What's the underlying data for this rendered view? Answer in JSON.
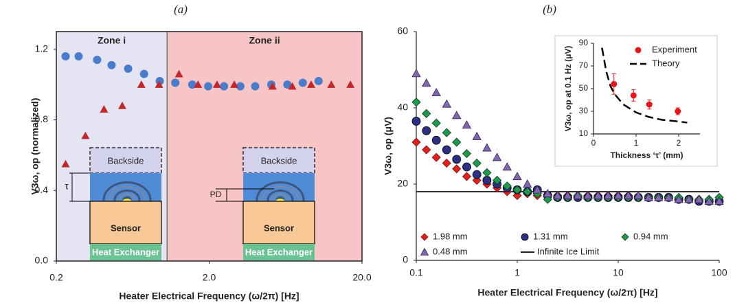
{
  "chart_data": [
    {
      "type": "scatter",
      "title": "(a)",
      "xlabel": "Heater Electrical Frequency (ω/2π) [Hz]",
      "ylabel": "V3ω, op (normalized)",
      "xscale": "log",
      "xlim": [
        0.2,
        20
      ],
      "ylim": [
        0,
        1.3
      ],
      "xticks": [
        0.2,
        {
          "value": 2,
          "label": "2.0"
        },
        {
          "value": 20,
          "label": "20.0"
        }
      ],
      "yticks": [
        {
          "value": 0,
          "label": "0.0"
        },
        0.4,
        0.8,
        1.2
      ],
      "frame": true,
      "zones": [
        {
          "label": "Zone i",
          "xlim": [
            0.2,
            1.06
          ],
          "color": "#e4e4f3"
        },
        {
          "label": "Zone ii",
          "xlim": [
            1.06,
            20
          ],
          "color": "#f7c5c5"
        }
      ],
      "schematics": [
        {
          "layers": [
            "Backside",
            "Sensor",
            "Heat Exchanger"
          ],
          "dimension": "τ"
        },
        {
          "layers": [
            "Backside",
            "Sensor",
            "Heat Exchanger"
          ],
          "dimension": "PD"
        }
      ],
      "series": [
        {
          "marker": "circle",
          "color": "#4a7ccc",
          "x": [
            0.23,
            0.28,
            0.37,
            0.46,
            0.59,
            0.75,
            0.95,
            1.2,
            1.55,
            1.97,
            2.5,
            3.2,
            4.0,
            5.1,
            6.5,
            8.2,
            10.4
          ],
          "values": [
            1.16,
            1.16,
            1.14,
            1.11,
            1.09,
            1.06,
            1.02,
            1.01,
            1.0,
            0.99,
            0.99,
            0.99,
            0.99,
            1.0,
            1.0,
            1.01,
            1.02
          ]
        },
        {
          "marker": "triangle",
          "color": "#c0282d",
          "x": [
            0.23,
            0.31,
            0.41,
            0.54,
            0.72,
            0.94,
            1.27,
            1.69,
            2.25,
            2.92,
            5.2,
            7.0,
            9.3,
            12.6,
            16.8
          ],
          "values": [
            0.55,
            0.71,
            0.86,
            0.88,
            1.0,
            1.0,
            1.06,
            1.0,
            1.0,
            1.0,
            0.99,
            0.99,
            1.0,
            1.0,
            1.0
          ]
        }
      ]
    },
    {
      "type": "scatter",
      "title": "(b)",
      "xlabel": "Heater Electrical Frequency (ω/2π) [Hz]",
      "ylabel": "V3ω, op (μV)",
      "xscale": "log",
      "xlim": [
        0.1,
        100
      ],
      "ylim": [
        0,
        60
      ],
      "xticks": [
        0.1,
        1,
        10,
        100
      ],
      "yticks": [
        0,
        20,
        40,
        60
      ],
      "frame": false,
      "legend": "lower left",
      "series": [
        {
          "name": "1.98 mm",
          "marker": "diamond",
          "color": "#e0201c",
          "stroke": "#7a1010",
          "x": [
            0.1,
            0.126,
            0.158,
            0.2,
            0.251,
            0.316,
            0.398,
            0.501,
            0.631,
            0.794,
            1,
            1.26,
            1.58,
            2,
            2.51,
            3.16,
            3.98,
            5.01,
            6.31,
            7.94,
            10,
            12.6,
            15.8,
            20,
            25.1,
            31.6,
            39.8,
            50.1,
            63.1,
            79.4,
            100
          ],
          "values": [
            31,
            29,
            27,
            25.5,
            24,
            22,
            21,
            20,
            19,
            18,
            17,
            17.5,
            17,
            17,
            17,
            17,
            17,
            17,
            17,
            17,
            17,
            17,
            16.5,
            16.5,
            16.5,
            16.5,
            16,
            16,
            16,
            16,
            15.5
          ]
        },
        {
          "name": "1.31 mm",
          "marker": "circle",
          "color": "#2b2f86",
          "stroke": "#000000",
          "x": [
            0.1,
            0.126,
            0.158,
            0.2,
            0.251,
            0.316,
            0.398,
            0.501,
            0.631,
            0.794,
            1,
            1.26,
            1.58,
            2,
            2.51,
            3.16,
            3.98,
            5.01,
            6.31,
            7.94,
            10,
            12.6,
            15.8,
            20,
            25.1,
            31.6,
            39.8,
            50.1,
            63.1,
            79.4,
            100
          ],
          "values": [
            36.5,
            34,
            31.5,
            29,
            26.5,
            24.5,
            22.5,
            21,
            20,
            19,
            18.5,
            18,
            18.5,
            17,
            16.5,
            16.5,
            16.5,
            16.5,
            16.5,
            16.5,
            16.5,
            16.5,
            16.5,
            16.5,
            16.5,
            16.5,
            16,
            16,
            15.5,
            15.5,
            15.5
          ]
        },
        {
          "name": "0.94 mm",
          "marker": "diamond",
          "color": "#1f9a4a",
          "stroke": "#0b3a1a",
          "x": [
            0.1,
            0.126,
            0.158,
            0.2,
            0.251,
            0.316,
            0.398,
            0.501,
            0.631,
            0.794,
            1,
            1.26,
            1.58,
            2,
            2.51,
            3.16,
            3.98,
            5.01,
            6.31,
            7.94,
            10,
            12.6,
            15.8,
            20,
            25.1,
            31.6,
            39.8,
            50.1,
            63.1,
            79.4,
            100
          ],
          "values": [
            41.5,
            38.5,
            36,
            33.5,
            31,
            28,
            25.5,
            23,
            21,
            19.5,
            18.5,
            18,
            17.5,
            16,
            16.5,
            16.5,
            17,
            16.5,
            16.5,
            16.5,
            16.5,
            16.5,
            16.5,
            16.5,
            16.5,
            16.5,
            16.5,
            16,
            16,
            16,
            16.5
          ]
        },
        {
          "name": "0.48 mm",
          "marker": "triangle",
          "color": "#8466b0",
          "stroke": "#2e2250",
          "x": [
            0.1,
            0.126,
            0.158,
            0.2,
            0.251,
            0.316,
            0.398,
            0.501,
            0.631,
            0.794,
            1,
            1.26,
            1.58,
            2,
            2.51,
            3.16,
            3.98,
            5.01,
            6.31,
            7.94,
            10,
            12.6,
            15.8,
            20,
            25.1,
            31.6,
            39.8,
            50.1,
            63.1,
            79.4,
            100
          ],
          "values": [
            49,
            46.5,
            44,
            41,
            38,
            35.5,
            32.5,
            29.5,
            27,
            24.5,
            22,
            20,
            18.5,
            17.5,
            17,
            17,
            17,
            17,
            17,
            17,
            17,
            17,
            17,
            16.5,
            16.5,
            16.5,
            16,
            16,
            16,
            15.5,
            15.5
          ]
        },
        {
          "name": "Infinite Ice Limit",
          "marker": "line",
          "color": "#000000",
          "x": [
            0.1,
            100
          ],
          "values": [
            18,
            18
          ]
        }
      ]
    },
    {
      "type": "scatter",
      "xlabel": "Thickness ‘τ’ (mm)",
      "ylabel": "V3ω, op at 0.1 Hz (μV)",
      "xlim": [
        0,
        2.5
      ],
      "ylim": [
        10,
        90
      ],
      "xticks": [
        0,
        1,
        2
      ],
      "yticks": [
        10,
        30,
        50,
        70,
        90
      ],
      "frame": false,
      "legend": "upper right",
      "series": [
        {
          "name": "Experiment",
          "marker": "circle",
          "color": "#e8161b",
          "x": [
            0.48,
            0.94,
            1.31,
            1.98
          ],
          "values": [
            54,
            44,
            36,
            30
          ],
          "errors": [
            9,
            5,
            4,
            3
          ]
        },
        {
          "name": "Theory",
          "marker": "dashed-line",
          "color": "#000000",
          "x": [
            0.2,
            0.3,
            0.4,
            0.5,
            0.7,
            1.0,
            1.3,
            1.6,
            2.0,
            2.2
          ],
          "values": [
            86,
            65,
            52,
            45,
            36,
            29,
            25,
            22.5,
            21,
            20
          ]
        }
      ]
    }
  ]
}
